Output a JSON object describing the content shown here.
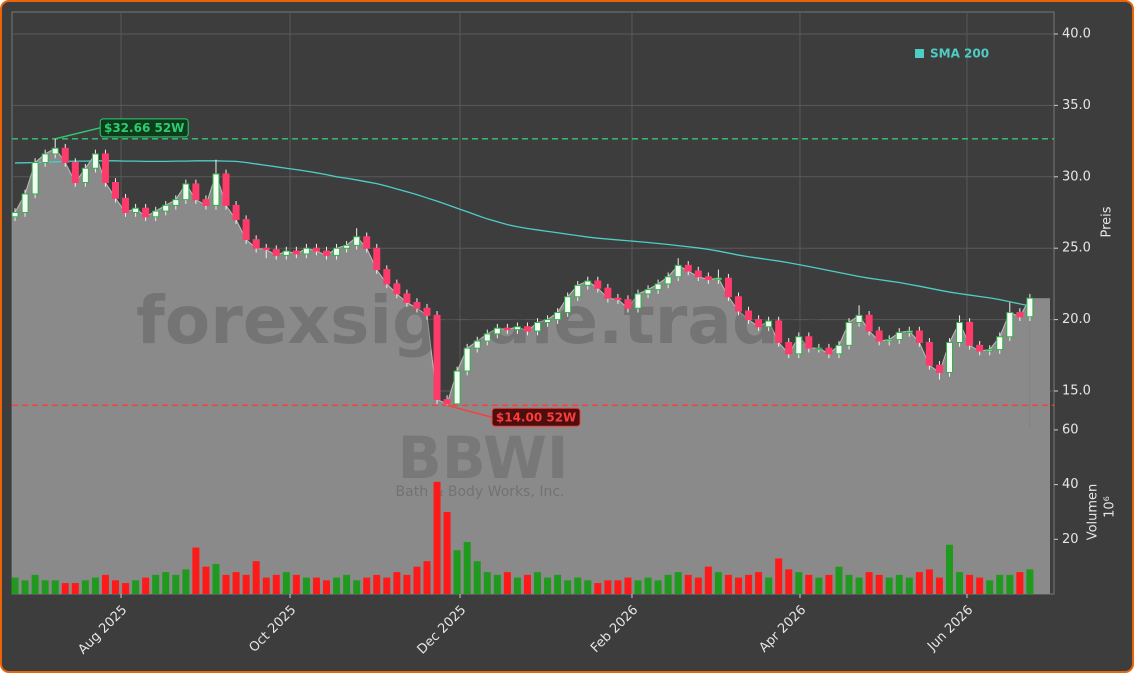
{
  "chart_data": {
    "type": "candlestick",
    "ylabel": "Preis",
    "up_color": "#2fb24a",
    "down_color": "#ff3b6b",
    "open": [
      27.2,
      27.5,
      28.8,
      31.0,
      31.6,
      32.0,
      31.0,
      29.6,
      30.6,
      31.6,
      29.6,
      28.5,
      27.5,
      27.8,
      27.2,
      27.6,
      28.0,
      28.4,
      29.5,
      28.4,
      28.0,
      30.2,
      28.0,
      27.0,
      25.6,
      25.0,
      24.9,
      24.5,
      24.8,
      24.6,
      25.0,
      24.8,
      24.5,
      25.0,
      25.2,
      25.8,
      25.0,
      23.5,
      22.5,
      21.8,
      21.2,
      20.8,
      20.3,
      14.4,
      14.1,
      16.4,
      18.0,
      18.5,
      19.0,
      19.4,
      19.3,
      19.5,
      19.2,
      19.8,
      20.0,
      20.5,
      21.6,
      22.4,
      22.7,
      22.2,
      21.5,
      21.4,
      20.8,
      21.8,
      22.1,
      22.5,
      23.0,
      23.8,
      23.4,
      23.0,
      22.8,
      22.9,
      21.6,
      20.6,
      20.0,
      19.5,
      19.9,
      18.4,
      17.6,
      18.8,
      18.0,
      18.0,
      17.6,
      18.2,
      19.8,
      20.3,
      19.2,
      18.5,
      18.6,
      19.1,
      19.2,
      18.4,
      16.8,
      16.3,
      18.4,
      19.8,
      18.2,
      17.8,
      17.9,
      18.8,
      20.5,
      20.2
    ],
    "high": [
      27.8,
      29.1,
      31.3,
      31.9,
      32.66,
      32.3,
      31.3,
      30.9,
      31.9,
      31.9,
      29.9,
      28.8,
      28.1,
      28.1,
      27.9,
      28.3,
      28.7,
      29.8,
      29.8,
      28.7,
      31.2,
      30.5,
      28.3,
      27.3,
      25.9,
      25.3,
      25.2,
      25.1,
      25.1,
      25.3,
      25.3,
      25.1,
      25.3,
      25.5,
      26.4,
      26.1,
      25.3,
      23.8,
      22.8,
      22.1,
      21.5,
      21.1,
      20.6,
      14.7,
      16.7,
      18.3,
      18.8,
      19.3,
      19.7,
      19.7,
      19.8,
      19.8,
      20.1,
      20.3,
      20.8,
      21.9,
      22.7,
      23.0,
      23.0,
      22.5,
      21.8,
      21.7,
      22.1,
      22.4,
      22.8,
      23.3,
      24.3,
      24.1,
      23.7,
      23.3,
      23.5,
      23.2,
      21.9,
      20.9,
      20.3,
      20.2,
      20.2,
      18.7,
      19.1,
      19.1,
      18.3,
      18.3,
      18.5,
      20.1,
      21.0,
      20.6,
      19.5,
      18.9,
      19.4,
      19.5,
      19.5,
      18.7,
      17.1,
      18.7,
      20.3,
      20.1,
      18.5,
      18.2,
      19.1,
      21.2,
      20.8,
      21.8
    ],
    "low": [
      26.9,
      27.2,
      28.5,
      30.7,
      31.3,
      30.7,
      29.3,
      29.3,
      30.3,
      29.3,
      28.2,
      27.2,
      27.2,
      26.9,
      26.9,
      27.3,
      27.7,
      28.1,
      28.1,
      27.7,
      27.7,
      27.7,
      26.7,
      25.3,
      24.7,
      24.3,
      24.2,
      24.2,
      24.3,
      24.3,
      24.5,
      24.2,
      24.2,
      24.7,
      24.9,
      24.7,
      23.2,
      22.2,
      21.5,
      20.9,
      20.5,
      20.0,
      14.1,
      14.0,
      14.05,
      16.1,
      17.7,
      18.2,
      18.7,
      19.0,
      19.0,
      18.9,
      18.9,
      19.5,
      19.7,
      20.2,
      21.3,
      22.1,
      21.9,
      21.2,
      21.1,
      20.5,
      20.5,
      21.5,
      21.8,
      22.2,
      22.7,
      23.1,
      22.7,
      22.5,
      22.5,
      21.3,
      20.3,
      19.7,
      19.2,
      19.2,
      18.1,
      17.3,
      17.3,
      17.7,
      17.7,
      17.3,
      17.3,
      17.9,
      19.5,
      18.9,
      18.2,
      18.2,
      18.3,
      18.8,
      18.1,
      16.5,
      15.8,
      16.0,
      18.1,
      17.9,
      17.5,
      17.5,
      17.6,
      18.5,
      19.9,
      19.9
    ],
    "close": [
      27.5,
      28.8,
      31.0,
      31.6,
      32.0,
      31.0,
      29.6,
      30.6,
      31.6,
      29.6,
      28.5,
      27.5,
      27.8,
      27.2,
      27.6,
      28.0,
      28.4,
      29.5,
      28.4,
      28.0,
      30.2,
      28.0,
      27.0,
      25.6,
      25.0,
      24.9,
      24.5,
      24.8,
      24.6,
      25.0,
      24.8,
      24.5,
      25.0,
      25.2,
      25.8,
      25.0,
      23.5,
      22.5,
      21.8,
      21.2,
      20.8,
      20.3,
      14.4,
      14.1,
      16.4,
      18.0,
      18.5,
      19.0,
      19.4,
      19.3,
      19.5,
      19.2,
      19.8,
      20.0,
      20.5,
      21.6,
      22.4,
      22.7,
      22.2,
      21.5,
      21.4,
      20.8,
      21.8,
      22.1,
      22.5,
      23.0,
      23.8,
      23.4,
      23.0,
      22.8,
      22.9,
      21.6,
      20.6,
      20.0,
      19.5,
      19.9,
      18.4,
      17.6,
      18.8,
      18.0,
      18.0,
      17.6,
      18.2,
      19.8,
      20.3,
      19.2,
      18.5,
      18.6,
      19.1,
      19.2,
      18.4,
      16.8,
      16.3,
      18.4,
      19.8,
      18.2,
      17.8,
      17.9,
      18.8,
      20.5,
      20.2,
      21.5
    ],
    "overlays": [
      {
        "name": "SMA 200",
        "color": "#4ecdc4",
        "values": [
          30.97,
          30.98,
          31.0,
          31.02,
          31.05,
          31.08,
          31.1,
          31.1,
          31.12,
          31.12,
          31.12,
          31.1,
          31.1,
          31.08,
          31.08,
          31.08,
          31.1,
          31.1,
          31.12,
          31.12,
          31.12,
          31.1,
          31.08,
          31.0,
          30.9,
          30.8,
          30.7,
          30.6,
          30.5,
          30.4,
          30.28,
          30.15,
          30.0,
          29.9,
          29.78,
          29.65,
          29.52,
          29.35,
          29.15,
          28.95,
          28.75,
          28.52,
          28.3,
          28.05,
          27.8,
          27.55,
          27.3,
          27.05,
          26.85,
          26.65,
          26.5,
          26.38,
          26.28,
          26.18,
          26.08,
          25.98,
          25.88,
          25.78,
          25.7,
          25.64,
          25.58,
          25.52,
          25.46,
          25.4,
          25.33,
          25.26,
          25.18,
          25.1,
          25.02,
          24.92,
          24.8,
          24.66,
          24.52,
          24.4,
          24.3,
          24.2,
          24.1,
          23.98,
          23.85,
          23.72,
          23.58,
          23.44,
          23.3,
          23.16,
          23.02,
          22.9,
          22.8,
          22.7,
          22.6,
          22.47,
          22.34,
          22.2,
          22.06,
          21.93,
          21.82,
          21.72,
          21.62,
          21.52,
          21.4,
          21.25,
          21.1,
          20.95
        ]
      }
    ],
    "legend": "upper right",
    "xlim": [
      -0.3,
      103.4
    ],
    "xticks": [
      {
        "value": 10.55,
        "label": "Aug 2025"
      },
      {
        "value": 27.37,
        "label": "Oct 2025"
      },
      {
        "value": 44.29,
        "label": "Dec 2025"
      },
      {
        "value": 61.4,
        "label": "Feb 2026"
      },
      {
        "value": 78.12,
        "label": "Apr 2026"
      },
      {
        "value": 94.74,
        "label": "Jun 2026"
      }
    ],
    "ylim": [
      12.41,
      41.54
    ],
    "yticks": [
      {
        "value": 15,
        "label": "15.0"
      },
      {
        "value": 20,
        "label": "20.0"
      },
      {
        "value": 25,
        "label": "25.0"
      },
      {
        "value": 30,
        "label": "30.0"
      },
      {
        "value": 35,
        "label": "35.0"
      },
      {
        "value": 40,
        "label": "40.0"
      }
    ],
    "grid": true,
    "reference_lines": [
      {
        "value": 32.66,
        "label": "$32.66 52W",
        "color": "#2ecc71",
        "kind": "high"
      },
      {
        "value": 14.0,
        "label": "$14.00 52W",
        "color": "#ff3b3b",
        "kind": "low"
      }
    ],
    "watermark": {
      "site": "forexsignale.trade",
      "ticker": "BBWI",
      "company": "Bath & Body Works, Inc."
    },
    "volume": {
      "label": "Volumen",
      "unit": "10⁶",
      "up_color": "#1f9a1f",
      "down_color": "#ff1a1a",
      "ylim": [
        0,
        60.7
      ],
      "yticks": [
        20,
        40,
        60
      ],
      "values": [
        6,
        5,
        7,
        5,
        5,
        4,
        4,
        5,
        6,
        7,
        5,
        4,
        5,
        6,
        7,
        8,
        7,
        9,
        17,
        10,
        11,
        7,
        8,
        7,
        12,
        6,
        7,
        8,
        7,
        6,
        6,
        5,
        6,
        7,
        5,
        6,
        7,
        6,
        8,
        7,
        10,
        12,
        41,
        30,
        16,
        19,
        12,
        8,
        7,
        8,
        6,
        7,
        8,
        6,
        7,
        5,
        6,
        5,
        4,
        5,
        5,
        6,
        5,
        6,
        5,
        7,
        8,
        7,
        6,
        10,
        8,
        7,
        6,
        7,
        8,
        6,
        13,
        9,
        8,
        7,
        6,
        7,
        10,
        7,
        6,
        8,
        7,
        6,
        7,
        6,
        8,
        9,
        6,
        18,
        8,
        7,
        6,
        5,
        7,
        7,
        8,
        9
      ]
    }
  }
}
